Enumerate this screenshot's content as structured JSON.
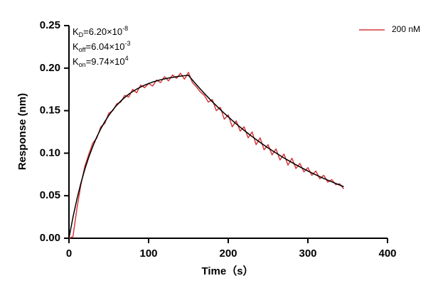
{
  "chart_data": {
    "type": "line",
    "y_label": "Response (nm)",
    "x_label": "Time（s）",
    "xlim": [
      0,
      400
    ],
    "xticks": [
      0,
      100,
      200,
      300,
      400
    ],
    "ylim": [
      0,
      0.25
    ],
    "yticks": [
      {
        "value": 0,
        "label": "0.00"
      },
      {
        "value": 0.05,
        "label": "0.05"
      },
      {
        "value": 0.1,
        "label": "0.10"
      },
      {
        "value": 0.15,
        "label": "0.15"
      },
      {
        "value": 0.2,
        "label": "0.20"
      },
      {
        "value": 0.25,
        "label": "0.25"
      }
    ],
    "legend": "top-right",
    "annotations": [
      {
        "symbol": "K",
        "subscript": "D",
        "text": "=6.20×10",
        "exponent": "-8"
      },
      {
        "symbol": "K",
        "subscript": "off",
        "text": "=6.04×10",
        "exponent": "-3"
      },
      {
        "symbol": "K",
        "subscript": "on",
        "text": "=9.74×10",
        "exponent": "4"
      }
    ],
    "x": [
      0,
      5,
      10,
      15,
      20,
      25,
      30,
      35,
      40,
      45,
      50,
      55,
      60,
      65,
      70,
      75,
      80,
      85,
      90,
      95,
      100,
      105,
      110,
      115,
      120,
      125,
      130,
      135,
      140,
      145,
      150,
      155,
      160,
      165,
      170,
      175,
      180,
      185,
      190,
      195,
      200,
      205,
      210,
      215,
      220,
      225,
      230,
      235,
      240,
      245,
      250,
      255,
      260,
      265,
      270,
      275,
      280,
      285,
      290,
      295,
      300,
      305,
      310,
      315,
      320,
      325,
      330,
      335,
      340,
      345
    ],
    "series": [
      {
        "name": "200 nM",
        "color": "#d9383a",
        "width": 1.5,
        "values": [
          0,
          0.002,
          0.035,
          0.063,
          0.085,
          0.099,
          0.112,
          0.118,
          0.131,
          0.135,
          0.147,
          0.15,
          0.158,
          0.16,
          0.168,
          0.166,
          0.175,
          0.171,
          0.18,
          0.177,
          0.182,
          0.179,
          0.186,
          0.183,
          0.19,
          0.185,
          0.192,
          0.188,
          0.194,
          0.187,
          0.195,
          0.183,
          0.178,
          0.172,
          0.168,
          0.16,
          0.163,
          0.15,
          0.154,
          0.14,
          0.145,
          0.131,
          0.138,
          0.126,
          0.131,
          0.118,
          0.125,
          0.11,
          0.118,
          0.104,
          0.11,
          0.098,
          0.105,
          0.092,
          0.099,
          0.086,
          0.094,
          0.082,
          0.088,
          0.078,
          0.083,
          0.074,
          0.079,
          0.07,
          0.074,
          0.066,
          0.069,
          0.063,
          0.064,
          0.058
        ]
      },
      {
        "color": "#000000",
        "width": 1.5,
        "values": [
          0,
          0.0246,
          0.0461,
          0.0649,
          0.0814,
          0.0957,
          0.1082,
          0.1192,
          0.1288,
          0.1371,
          0.1444,
          0.1508,
          0.1564,
          0.1613,
          0.1655,
          0.1693,
          0.1725,
          0.1753,
          0.1778,
          0.18,
          0.1819,
          0.1836,
          0.185,
          0.1863,
          0.1874,
          0.1883,
          0.1892,
          0.1899,
          0.1906,
          0.1911,
          0.1916,
          0.186,
          0.1806,
          0.1754,
          0.1703,
          0.1653,
          0.1605,
          0.1559,
          0.1513,
          0.1469,
          0.1427,
          0.1385,
          0.1345,
          0.1306,
          0.1268,
          0.1231,
          0.1195,
          0.1161,
          0.1127,
          0.1094,
          0.1062,
          0.1032,
          0.1002,
          0.0973,
          0.0944,
          0.0917,
          0.089,
          0.0864,
          0.0839,
          0.0815,
          0.0791,
          0.0768,
          0.0746,
          0.0724,
          0.0703,
          0.0683,
          0.0663,
          0.0644,
          0.0625,
          0.0607
        ]
      }
    ]
  }
}
